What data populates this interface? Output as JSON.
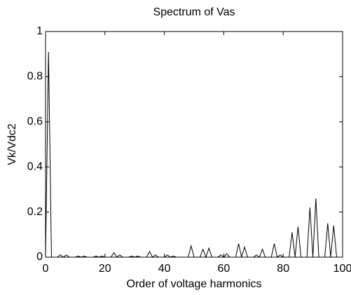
{
  "chart_data": {
    "type": "line",
    "title": "Spectrum of Vas",
    "x_label": "Order of voltage harmonics",
    "y_label": "Vk/Vdc2",
    "x": [
      0,
      1,
      2,
      3,
      4,
      5,
      6,
      7,
      8,
      9,
      10,
      11,
      12,
      13,
      14,
      15,
      16,
      17,
      18,
      19,
      20,
      21,
      22,
      23,
      24,
      25,
      26,
      27,
      28,
      29,
      30,
      31,
      32,
      33,
      34,
      35,
      36,
      37,
      38,
      39,
      40,
      41,
      42,
      43,
      44,
      45,
      46,
      47,
      48,
      49,
      50,
      51,
      52,
      53,
      54,
      55,
      56,
      57,
      58,
      59,
      60,
      61,
      62,
      63,
      64,
      65,
      66,
      67,
      68,
      69,
      70,
      71,
      72,
      73,
      74,
      75,
      76,
      77,
      78,
      79,
      80,
      81,
      82,
      83,
      84,
      85,
      86,
      87,
      88,
      89,
      90,
      91,
      92,
      93,
      94,
      95,
      96,
      97,
      98,
      99,
      100
    ],
    "series": [
      {
        "color": "#000000",
        "values": [
          0,
          0.91,
          0,
          0,
          0,
          0.01,
          0,
          0.01,
          0,
          0,
          0,
          0.005,
          0,
          0.005,
          0,
          0,
          0,
          0.005,
          0,
          0.005,
          0,
          0,
          0,
          0.02,
          0,
          0.01,
          0,
          0,
          0,
          0.005,
          0,
          0.005,
          0,
          0,
          0,
          0.025,
          0,
          0.01,
          0,
          0,
          0,
          0.01,
          0,
          0.005,
          0,
          0,
          0,
          0,
          0,
          0.05,
          0,
          0,
          0,
          0.035,
          0,
          0.04,
          0,
          0,
          0,
          0.01,
          0,
          0.015,
          0,
          0,
          0,
          0.06,
          0,
          0.045,
          0,
          0,
          0,
          0.01,
          0,
          0.035,
          0,
          0,
          0,
          0.06,
          0,
          0.01,
          0,
          0,
          0,
          0.11,
          0,
          0.135,
          0,
          0,
          0,
          0.22,
          0,
          0.26,
          0,
          0,
          0,
          0.15,
          0,
          0.14,
          0,
          0,
          0
        ]
      }
    ],
    "xlim": [
      0,
      100
    ],
    "ylim": [
      0,
      1
    ],
    "xticks": [
      0,
      20,
      40,
      60,
      80,
      100
    ],
    "yticks": [
      0,
      0.2,
      0.4,
      0.6,
      0.8,
      1
    ],
    "grid": false
  }
}
